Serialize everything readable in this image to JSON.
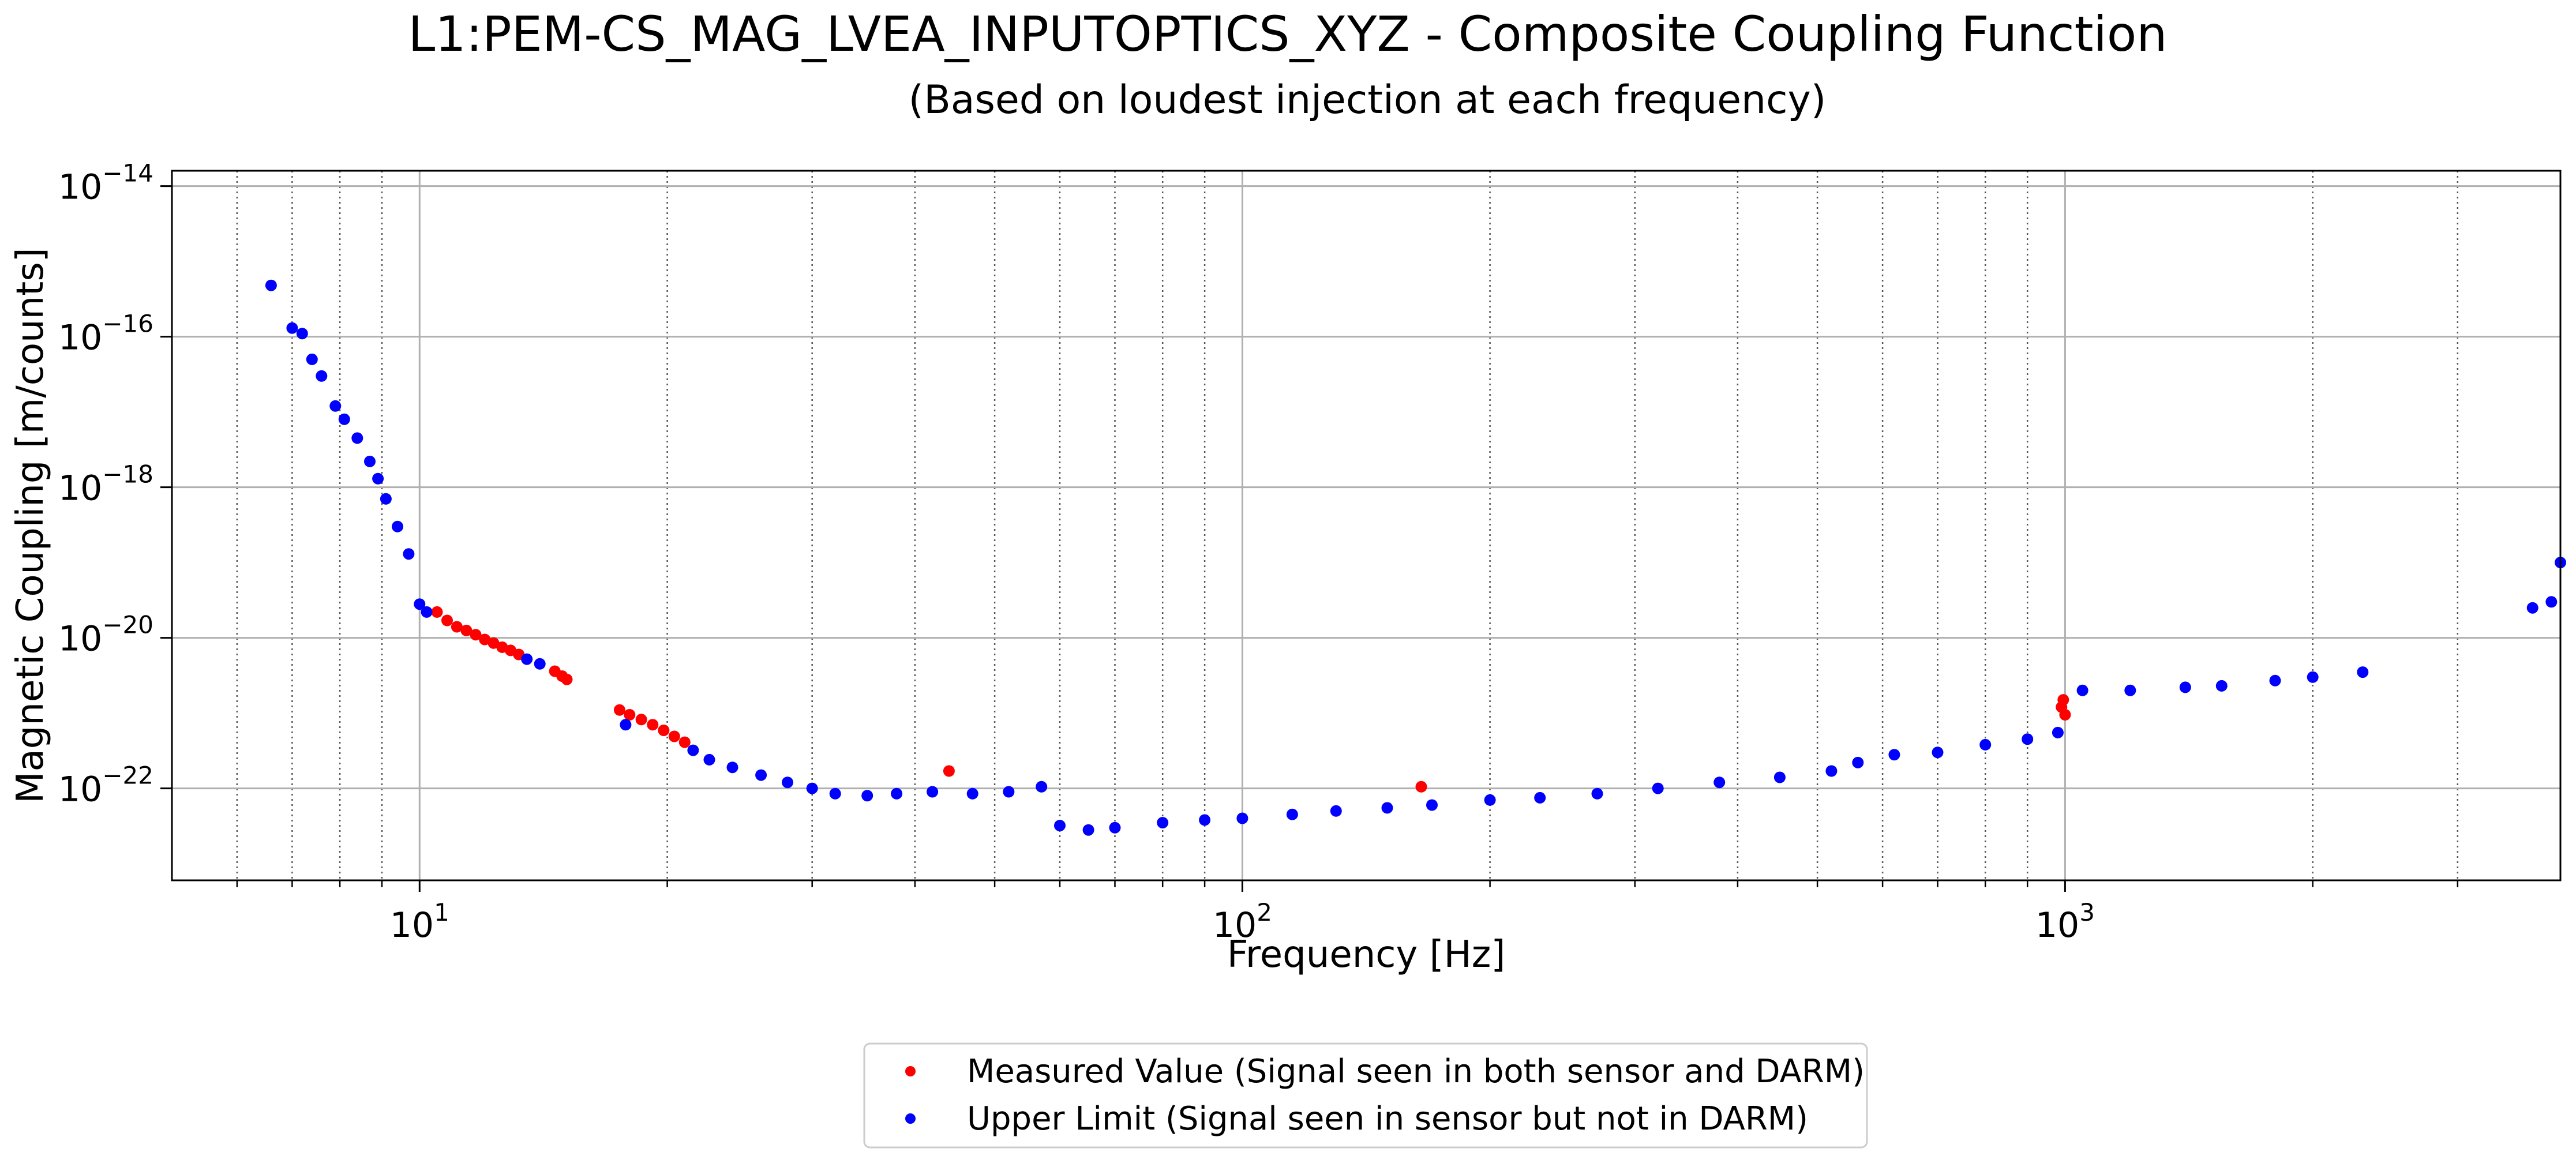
{
  "chart_data": {
    "type": "scatter",
    "title": "L1:PEM-CS_MAG_LVEA_INPUTOPTICS_XYZ - Composite Coupling Function",
    "subtitle": "(Based on loudest injection at each frequency)",
    "xlabel": "Frequency [Hz]",
    "ylabel": "Magnetic Coupling [m/counts]",
    "xscale": "log",
    "yscale": "log",
    "xlim": [
      5,
      4000
    ],
    "ylim": [
      6e-24,
      1.6e-14
    ],
    "grid": true,
    "legend_position": "bottom-center",
    "x_ticks": [
      {
        "value": 10,
        "base": "10",
        "exp": "1"
      },
      {
        "value": 100,
        "base": "10",
        "exp": "2"
      },
      {
        "value": 1000,
        "base": "10",
        "exp": "3"
      }
    ],
    "y_ticks": [
      {
        "value": 1e-14,
        "base": "10",
        "exp": "−14"
      },
      {
        "value": 1e-16,
        "base": "10",
        "exp": "−16"
      },
      {
        "value": 1e-18,
        "base": "10",
        "exp": "−18"
      },
      {
        "value": 1e-20,
        "base": "10",
        "exp": "−20"
      },
      {
        "value": 1e-22,
        "base": "10",
        "exp": "−22"
      }
    ],
    "series": [
      {
        "name": "Measured Value (Signal seen in both sensor and DARM)",
        "color": "#ff0000",
        "points": [
          [
            10.5,
            2.2e-20
          ],
          [
            10.8,
            1.7e-20
          ],
          [
            11.1,
            1.4e-20
          ],
          [
            11.4,
            1.25e-20
          ],
          [
            11.7,
            1.1e-20
          ],
          [
            12.0,
            9.5e-21
          ],
          [
            12.3,
            8.5e-21
          ],
          [
            12.6,
            7.5e-21
          ],
          [
            12.9,
            6.8e-21
          ],
          [
            13.2,
            6e-21
          ],
          [
            14.6,
            3.6e-21
          ],
          [
            14.9,
            3.1e-21
          ],
          [
            15.1,
            2.8e-21
          ],
          [
            17.5,
            1.1e-21
          ],
          [
            18.0,
            9.5e-22
          ],
          [
            18.6,
            8.2e-22
          ],
          [
            19.2,
            7e-22
          ],
          [
            19.8,
            5.9e-22
          ],
          [
            20.4,
            4.9e-22
          ],
          [
            21.0,
            4.1e-22
          ],
          [
            44.0,
            1.7e-22
          ],
          [
            165,
            1.05e-22
          ],
          [
            990,
            1.2e-21
          ],
          [
            995,
            1.5e-21
          ],
          [
            1000,
            9.5e-22
          ]
        ]
      },
      {
        "name": "Upper Limit (Signal seen in sensor but not in DARM)",
        "color": "#0000ff",
        "points": [
          [
            6.6,
            4.8e-16
          ],
          [
            7.0,
            1.3e-16
          ],
          [
            7.2,
            1.1e-16
          ],
          [
            7.4,
            5e-17
          ],
          [
            7.6,
            3e-17
          ],
          [
            7.9,
            1.2e-17
          ],
          [
            8.1,
            8e-18
          ],
          [
            8.4,
            4.5e-18
          ],
          [
            8.7,
            2.2e-18
          ],
          [
            8.9,
            1.3e-18
          ],
          [
            9.1,
            7e-19
          ],
          [
            9.4,
            3e-19
          ],
          [
            9.7,
            1.3e-19
          ],
          [
            10.0,
            2.8e-20
          ],
          [
            10.2,
            2.2e-20
          ],
          [
            13.5,
            5.2e-21
          ],
          [
            14.0,
            4.5e-21
          ],
          [
            17.8,
            7e-22
          ],
          [
            21.5,
            3.2e-22
          ],
          [
            22.5,
            2.4e-22
          ],
          [
            24,
            1.9e-22
          ],
          [
            26,
            1.5e-22
          ],
          [
            28,
            1.2e-22
          ],
          [
            30,
            1e-22
          ],
          [
            32,
            8.5e-23
          ],
          [
            35,
            8e-23
          ],
          [
            38,
            8.5e-23
          ],
          [
            42,
            9e-23
          ],
          [
            47,
            8.5e-23
          ],
          [
            52,
            9e-23
          ],
          [
            57,
            1.05e-22
          ],
          [
            60,
            3.2e-23
          ],
          [
            65,
            2.8e-23
          ],
          [
            70,
            3e-23
          ],
          [
            80,
            3.5e-23
          ],
          [
            90,
            3.8e-23
          ],
          [
            100,
            4e-23
          ],
          [
            115,
            4.5e-23
          ],
          [
            130,
            5e-23
          ],
          [
            150,
            5.5e-23
          ],
          [
            170,
            6e-23
          ],
          [
            200,
            7e-23
          ],
          [
            230,
            7.5e-23
          ],
          [
            270,
            8.5e-23
          ],
          [
            320,
            1e-22
          ],
          [
            380,
            1.2e-22
          ],
          [
            450,
            1.4e-22
          ],
          [
            520,
            1.7e-22
          ],
          [
            560,
            2.2e-22
          ],
          [
            620,
            2.8e-22
          ],
          [
            700,
            3e-22
          ],
          [
            800,
            3.8e-22
          ],
          [
            900,
            4.5e-22
          ],
          [
            980,
            5.5e-22
          ],
          [
            1050,
            2e-21
          ],
          [
            1200,
            2e-21
          ],
          [
            1400,
            2.2e-21
          ],
          [
            1550,
            2.3e-21
          ],
          [
            1800,
            2.7e-21
          ],
          [
            2000,
            3e-21
          ],
          [
            2300,
            3.5e-21
          ],
          [
            3700,
            2.5e-20
          ],
          [
            3900,
            3e-20
          ],
          [
            4000,
            1e-19
          ]
        ]
      }
    ]
  }
}
